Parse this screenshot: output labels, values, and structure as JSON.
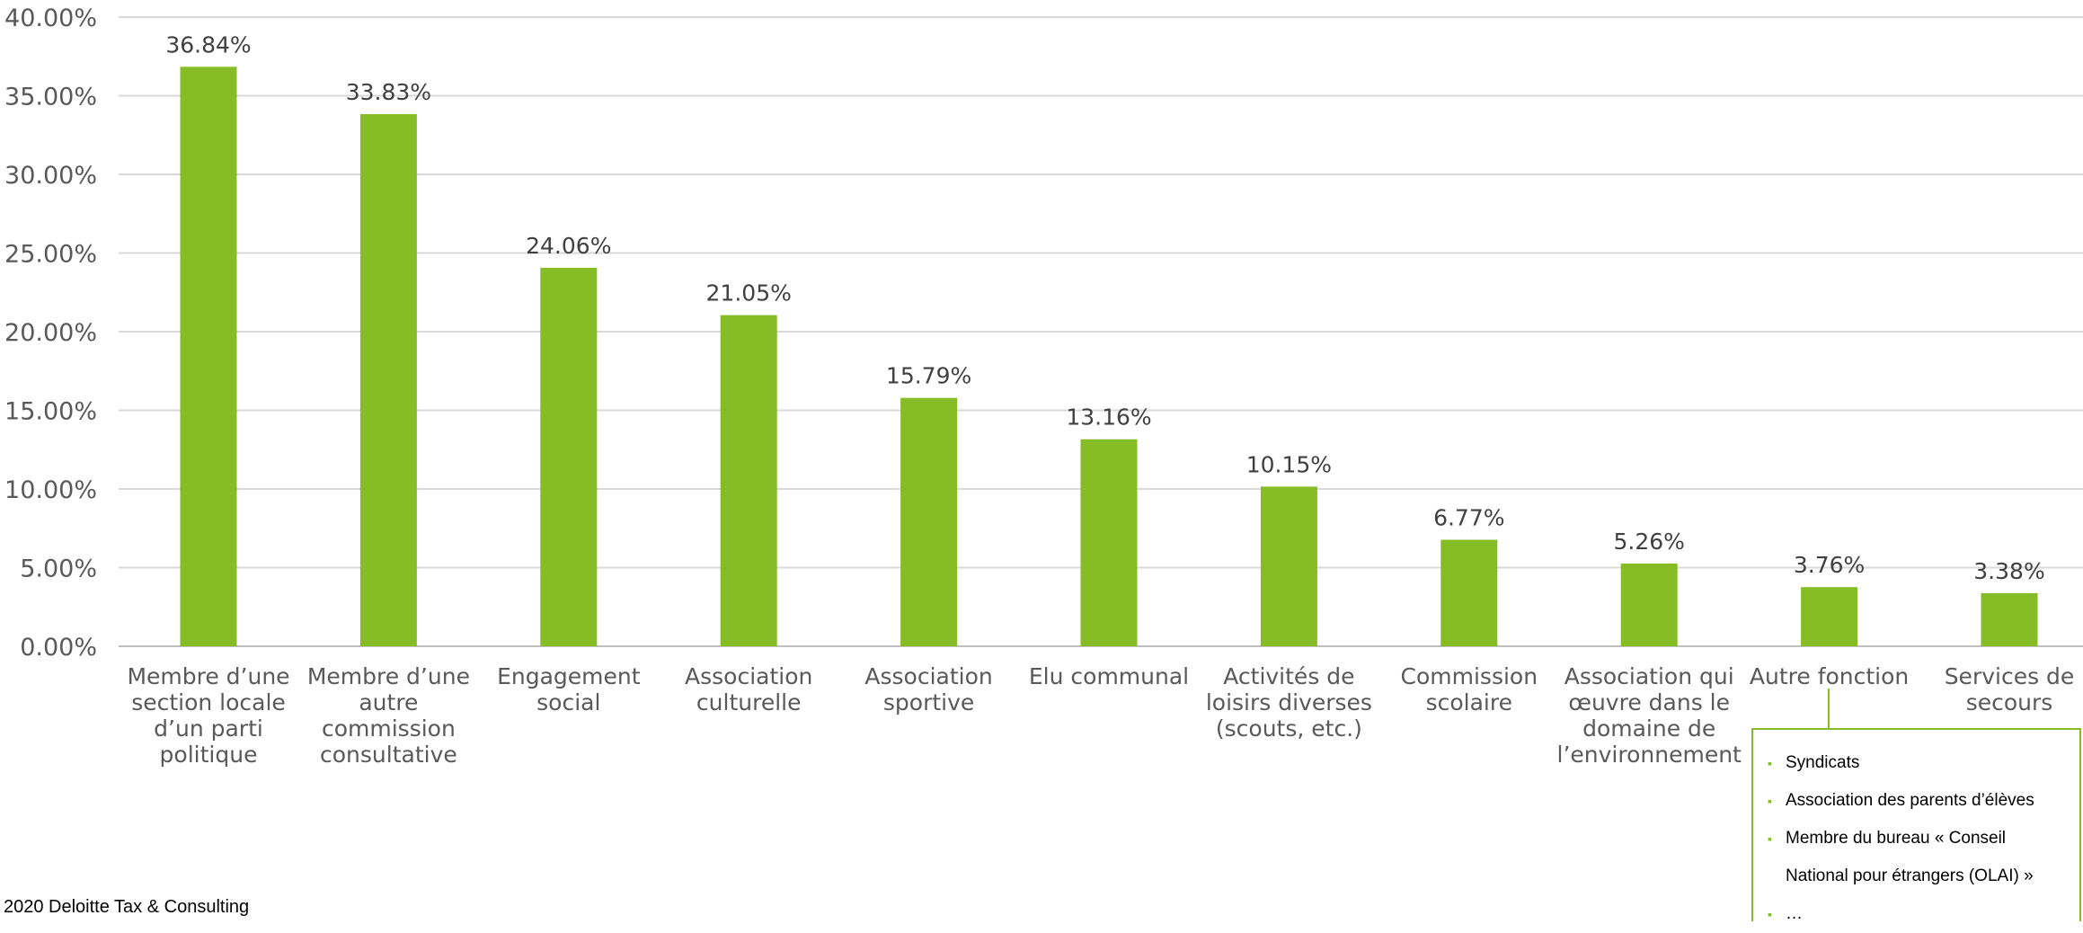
{
  "chart_data": {
    "type": "bar",
    "categories": [
      [
        "Membre d’une",
        "section locale",
        "d’un parti",
        "politique"
      ],
      [
        "Membre d’une",
        "autre",
        "commission",
        "consultative"
      ],
      [
        "Engagement",
        "social"
      ],
      [
        "Association",
        "culturelle"
      ],
      [
        "Association",
        "sportive"
      ],
      [
        "Elu communal"
      ],
      [
        "Activités de",
        "loisirs diverses",
        "(scouts, etc.)"
      ],
      [
        "Commission",
        "scolaire"
      ],
      [
        "Association qui",
        "œuvre dans le",
        "domaine de",
        "l’environnement"
      ],
      [
        "Autre fonction"
      ],
      [
        "Services de",
        "secours"
      ]
    ],
    "values": [
      36.84,
      33.83,
      24.06,
      21.05,
      15.79,
      13.16,
      10.15,
      6.77,
      5.26,
      3.76,
      3.38
    ],
    "data_labels": [
      "36.84%",
      "33.83%",
      "24.06%",
      "21.05%",
      "15.79%",
      "13.16%",
      "10.15%",
      "6.77%",
      "5.26%",
      "3.76%",
      "3.38%"
    ],
    "yticks": [
      "0.00%",
      "5.00%",
      "10.00%",
      "15.00%",
      "20.00%",
      "25.00%",
      "30.00%",
      "35.00%",
      "40.00%"
    ],
    "ylim": [
      0,
      40
    ],
    "ytick_step": 5,
    "grid": true,
    "bar_color": "#86bc25",
    "title": "",
    "xlabel": "",
    "ylabel": ""
  },
  "annotation": {
    "items": [
      "Syndicats",
      "Association des parents d’élèves",
      "Membre du bureau « Conseil National pour étrangers (OLAI) »",
      "…"
    ]
  },
  "footer": {
    "text": "2020 Deloitte Tax & Consulting"
  },
  "colors": {
    "accent": "#86bc25",
    "grid": "#d9d9d9",
    "text": "#595959"
  }
}
